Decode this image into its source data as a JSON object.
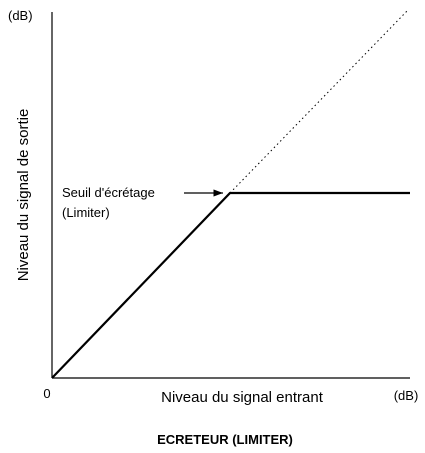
{
  "axes": {
    "y_unit": "(dB)",
    "y_label": "Niveau du signal de sortie",
    "x_origin": "0",
    "x_label": "Niveau du signal entrant",
    "x_unit": "(dB)"
  },
  "annotation": {
    "label": "Seuil d'écrétage",
    "sublabel": "(Limiter)"
  },
  "caption": "ECRETEUR (LIMITER)"
}
